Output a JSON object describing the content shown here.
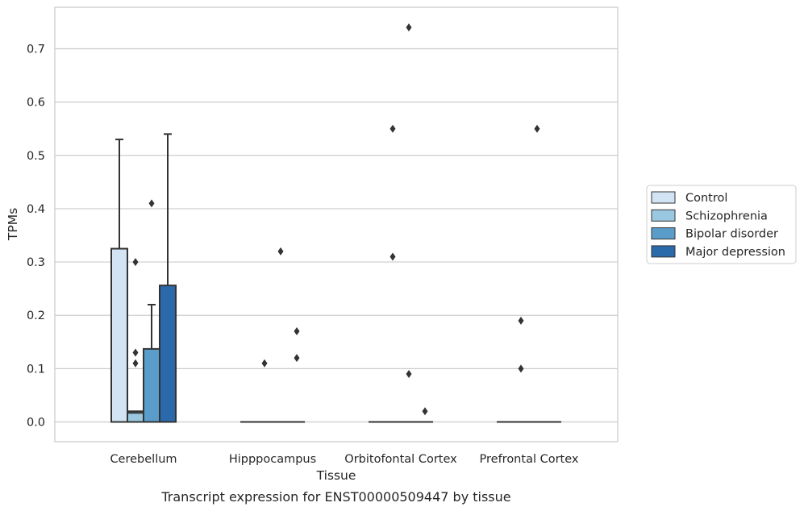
{
  "chart_data": {
    "type": "box",
    "title": "",
    "caption": "Transcript expression for ENST00000509447 by tissue",
    "xlabel": "Tissue",
    "ylabel": "TPMs",
    "ylim": [
      -0.035,
      0.775
    ],
    "yticks": [
      "0.0",
      "0.1",
      "0.2",
      "0.3",
      "0.4",
      "0.5",
      "0.6",
      "0.7"
    ],
    "grid": "horizontal",
    "legend_position": "right",
    "categories": [
      "Cerebellum",
      "Hipppocampus",
      "Orbitofontal Cortex",
      "Prefrontal Cortex"
    ],
    "series": [
      {
        "name": "Control",
        "color": "#d2e3f3",
        "boxes": [
          {
            "q1": 0,
            "median": 0,
            "q3": 0.325,
            "whisker_low": 0,
            "whisker_high": 0.53,
            "outliers": []
          },
          {
            "q1": 0,
            "median": 0,
            "q3": 0,
            "whisker_low": 0,
            "whisker_high": 0,
            "outliers": []
          },
          {
            "q1": 0,
            "median": 0,
            "q3": 0,
            "whisker_low": 0,
            "whisker_high": 0,
            "outliers": []
          },
          {
            "q1": 0,
            "median": 0,
            "q3": 0,
            "whisker_low": 0,
            "whisker_high": 0,
            "outliers": []
          }
        ]
      },
      {
        "name": "Schizophrenia",
        "color": "#9ac8e0",
        "boxes": [
          {
            "q1": 0,
            "median": 0.017,
            "q3": 0.02,
            "whisker_low": 0,
            "whisker_high": 0.02,
            "outliers": [
              0.11,
              0.13,
              0.3
            ]
          },
          {
            "q1": 0,
            "median": 0,
            "q3": 0,
            "whisker_low": 0,
            "whisker_high": 0,
            "outliers": [
              0.11
            ]
          },
          {
            "q1": 0,
            "median": 0,
            "q3": 0,
            "whisker_low": 0,
            "whisker_high": 0,
            "outliers": [
              0.31,
              0.55
            ]
          },
          {
            "q1": 0,
            "median": 0,
            "q3": 0,
            "whisker_low": 0,
            "whisker_high": 0,
            "outliers": [
              0.1,
              0.19
            ]
          }
        ]
      },
      {
        "name": "Bipolar disorder",
        "color": "#5a9dcb",
        "boxes": [
          {
            "q1": 0,
            "median": 0,
            "q3": 0.137,
            "whisker_low": 0,
            "whisker_high": 0.22,
            "outliers": [
              0.41
            ]
          },
          {
            "q1": 0,
            "median": 0,
            "q3": 0,
            "whisker_low": 0,
            "whisker_high": 0,
            "outliers": [
              0.32
            ]
          },
          {
            "q1": 0,
            "median": 0,
            "q3": 0,
            "whisker_low": 0,
            "whisker_high": 0,
            "outliers": [
              0.09,
              0.74
            ]
          },
          {
            "q1": 0,
            "median": 0,
            "q3": 0,
            "whisker_low": 0,
            "whisker_high": 0,
            "outliers": [
              0.55
            ]
          }
        ]
      },
      {
        "name": "Major depression",
        "color": "#2a6aab",
        "boxes": [
          {
            "q1": 0,
            "median": 0,
            "q3": 0.256,
            "whisker_low": 0,
            "whisker_high": 0.54,
            "outliers": []
          },
          {
            "q1": 0,
            "median": 0,
            "q3": 0,
            "whisker_low": 0,
            "whisker_high": 0,
            "outliers": [
              0.12,
              0.17
            ]
          },
          {
            "q1": 0,
            "median": 0,
            "q3": 0,
            "whisker_low": 0,
            "whisker_high": 0,
            "outliers": [
              0.02
            ]
          },
          {
            "q1": 0,
            "median": 0,
            "q3": 0,
            "whisker_low": 0,
            "whisker_high": 0,
            "outliers": []
          }
        ]
      }
    ]
  },
  "colors": {
    "grid": "#cccccc",
    "frame": "#cccccc",
    "box_edge": "#333333"
  }
}
